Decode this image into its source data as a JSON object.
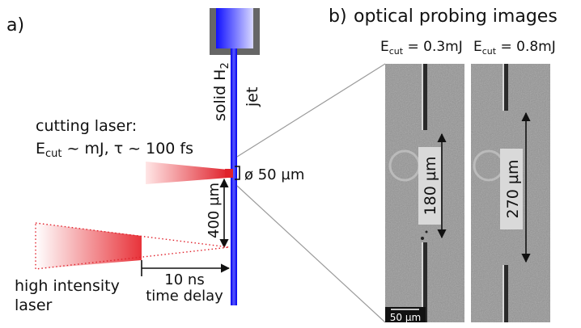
{
  "panel_a": {
    "label": "a)",
    "jet_label": "jet",
    "solid_label_prefix": "solid H",
    "solid_label_sub": "2",
    "cutting_laser_title": "cutting laser:",
    "cutting_E": "E",
    "cutting_E_sub": "cut",
    "cutting_params_rest": " ~ mJ, τ ~ 100 fs",
    "diameter_label": "ø 50 µm",
    "distance_label": "400 µm",
    "delay_value": "10 ns",
    "delay_caption": "time delay",
    "hi_laser_line1": "high intensity",
    "hi_laser_line2": "laser"
  },
  "panel_b": {
    "label": "b)",
    "title": "optical probing images",
    "img1_E": "E",
    "img1_E_sub": "cut",
    "img1_E_rest": " = 0.3mJ",
    "img2_E": "E",
    "img2_E_sub": "cut",
    "img2_E_rest": " = 0.8mJ",
    "img1_gap": "180 µm",
    "img2_gap": "270 µm",
    "scale_bar": "50 µm"
  },
  "colors": {
    "jet_blue": "#2b2bff",
    "laser_red": "#e0222c",
    "probe_gray": "#9a9a9a",
    "holder_gray": "#666666"
  }
}
